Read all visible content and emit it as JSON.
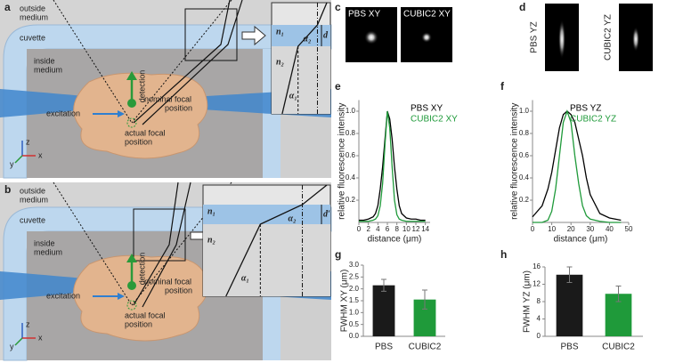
{
  "panel_a": {
    "panel_label": "a",
    "outside_medium": [
      "outside",
      "medium"
    ],
    "cuvette": "cuvette",
    "inside_medium": [
      "inside",
      "medium"
    ],
    "detection": "detection",
    "nominal_focal_position": [
      "nominal focal",
      "position"
    ],
    "excitation": "excitation",
    "actual_focal_position": [
      "actual focal",
      "position"
    ],
    "axes": [
      "z",
      "y",
      "x"
    ],
    "inset": {
      "n1": "n₁",
      "n2": "n₂",
      "alpha1": "α₁",
      "alpha2": "α₂",
      "thickness": "d"
    }
  },
  "panel_b": {
    "panel_label": "b",
    "outside_medium": [
      "outside",
      "medium"
    ],
    "cuvette": "cuvette",
    "inside_medium": [
      "inside",
      "medium"
    ],
    "detection": "detection",
    "nominal_focal_position": [
      "nominal focal",
      "position"
    ],
    "excitation": "excitation",
    "actual_focal_position": [
      "actual focal",
      "position"
    ],
    "axes": [
      "z",
      "y",
      "x"
    ],
    "inset": {
      "n1": "n₁",
      "n2": "n₂",
      "alpha1": "α₁",
      "alpha2": "α₂",
      "thickness": "d′"
    }
  },
  "panel_c": {
    "panel_label": "c",
    "titles": [
      "PBS XY",
      "CUBIC2 XY"
    ]
  },
  "panel_d": {
    "panel_label": "d",
    "titles": [
      "PBS YZ",
      "CUBIC2 YZ"
    ]
  },
  "chart_data": [
    {
      "type": "line",
      "panel_label": "e",
      "xlabel": "distance (μm)",
      "ylabel": "relative fluorescence intensity",
      "x": [
        0,
        1,
        2,
        3,
        3.5,
        4,
        4.5,
        5,
        5.5,
        6,
        6.5,
        7,
        7.5,
        8,
        8.5,
        9,
        10,
        11,
        12,
        13,
        14
      ],
      "xlim": [
        0,
        15
      ],
      "xticks": [
        0,
        2,
        4,
        6,
        8,
        10,
        12,
        14
      ],
      "ylim": [
        0,
        1.1
      ],
      "yticks": [
        0.2,
        0.4,
        0.6,
        0.8,
        {
          "value": 1,
          "label": "1.0"
        }
      ],
      "series": [
        {
          "name": "PBS XY",
          "color": "#000000",
          "values": [
            0.02,
            0.02,
            0.03,
            0.05,
            0.08,
            0.15,
            0.3,
            0.5,
            0.75,
            1.0,
            0.93,
            0.75,
            0.5,
            0.3,
            0.15,
            0.08,
            0.04,
            0.03,
            0.03,
            0.02,
            0.02
          ]
        },
        {
          "name": "CUBIC2 XY",
          "color": "#1f9a3a",
          "values": [
            0.01,
            0.01,
            0.01,
            0.02,
            0.03,
            0.06,
            0.15,
            0.35,
            0.7,
            1.0,
            0.85,
            0.5,
            0.2,
            0.07,
            0.03,
            0.02,
            0.01,
            0.01,
            0.01,
            0.01,
            0.01
          ]
        }
      ]
    },
    {
      "type": "line",
      "panel_label": "f",
      "xlabel": "distance (μm)",
      "ylabel": "relative fluorescence intensity",
      "x": [
        0,
        5,
        8,
        10,
        12,
        14,
        16,
        18,
        20,
        22,
        24,
        26,
        28,
        30,
        35,
        40,
        46
      ],
      "xlim": [
        0,
        50
      ],
      "xticks": [
        0,
        10,
        20,
        30,
        40,
        50
      ],
      "ylim": [
        0,
        1.1
      ],
      "yticks": [
        0.2,
        0.4,
        0.6,
        0.8,
        {
          "value": 1,
          "label": "1.0"
        }
      ],
      "series": [
        {
          "name": "PBS YZ",
          "color": "#000000",
          "values": [
            0.05,
            0.15,
            0.3,
            0.45,
            0.65,
            0.85,
            0.97,
            1.0,
            0.97,
            0.9,
            0.75,
            0.6,
            0.4,
            0.25,
            0.08,
            0.04,
            0.02
          ]
        },
        {
          "name": "CUBIC2 YZ",
          "color": "#1f9a3a",
          "values": [
            0,
            0,
            0.02,
            0.1,
            0.3,
            0.6,
            0.9,
            1.0,
            0.9,
            0.6,
            0.35,
            0.15,
            0.06,
            0.03,
            0.01,
            0,
            0
          ]
        }
      ]
    },
    {
      "type": "bar",
      "panel_label": "g",
      "ylabel": "FWHM XY (μm)",
      "categories": [
        "PBS",
        "CUBIC2"
      ],
      "values": [
        2.15,
        1.55
      ],
      "errors": [
        0.25,
        0.4
      ],
      "colors": [
        "#1a1a1a",
        "#1f9a3a"
      ],
      "ylim": [
        0,
        3
      ],
      "yticks": [
        {
          "value": 0,
          "label": "0.0"
        },
        0.5,
        {
          "value": 1,
          "label": "1.0"
        },
        1.5,
        {
          "value": 2,
          "label": "2.0"
        },
        2.5,
        {
          "value": 3,
          "label": "3.0"
        }
      ]
    },
    {
      "type": "bar",
      "panel_label": "h",
      "ylabel": "FWHM YZ (μm)",
      "categories": [
        "PBS",
        "CUBIC2"
      ],
      "values": [
        14.2,
        9.8
      ],
      "errors": [
        1.8,
        1.8
      ],
      "colors": [
        "#1a1a1a",
        "#1f9a3a"
      ],
      "ylim": [
        0,
        16
      ],
      "yticks": [
        0,
        4,
        8,
        12,
        16
      ]
    }
  ]
}
